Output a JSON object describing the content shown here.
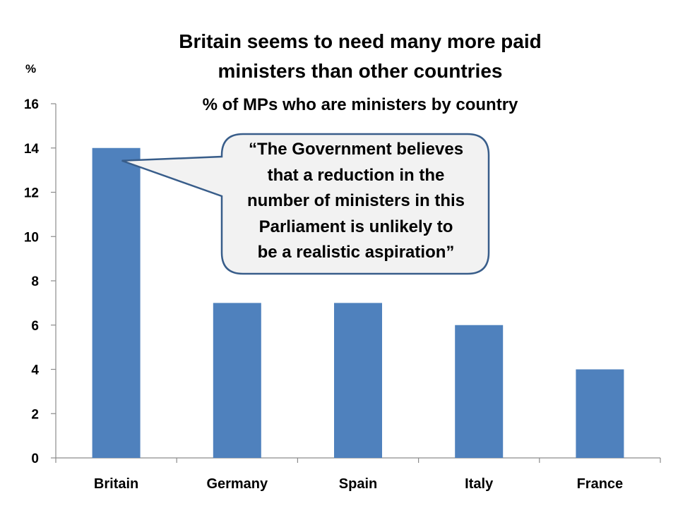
{
  "slide": {
    "title_lines": [
      "Britain seems to need many more paid",
      "ministers than other countries"
    ],
    "subtitle": "% of MPs who are ministers by country",
    "unit_label": "%"
  },
  "callout": {
    "lines": [
      "“The Government believes",
      "that a reduction in the",
      "number of ministers in this",
      "Parliament is unlikely to",
      "be a realistic aspiration”"
    ],
    "points_to": "Britain"
  },
  "chart_data": {
    "type": "bar",
    "title": "Britain seems to need many more paid ministers than other countries",
    "subtitle": "% of MPs who are ministers by country",
    "ylabel": "%",
    "xlabel": "",
    "categories": [
      "Britain",
      "Germany",
      "Spain",
      "Italy",
      "France"
    ],
    "values": [
      14,
      7,
      7,
      6,
      4
    ],
    "ylim": [
      0,
      16
    ],
    "yticks": [
      0,
      2,
      4,
      6,
      8,
      10,
      12,
      14,
      16
    ],
    "grid": false,
    "bar_color": "#4F81BD"
  },
  "colors": {
    "axis": "#8C8C8C",
    "callout_fill": "#F2F2F2",
    "callout_border": "#385D8A"
  }
}
